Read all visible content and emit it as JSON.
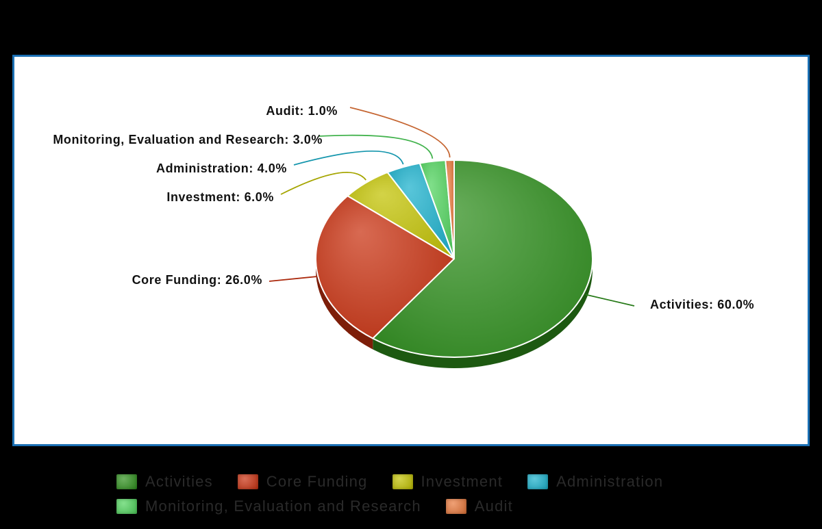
{
  "chart_data": {
    "type": "pie",
    "style": "3d",
    "slices": [
      {
        "name": "Activities",
        "value": 60.0,
        "label": "Activities: 60.0%",
        "color": "#2e8f1c"
      },
      {
        "name": "Core Funding",
        "value": 26.0,
        "label": "Core Funding: 26.0%",
        "color": "#c9300f"
      },
      {
        "name": "Investment",
        "value": 6.0,
        "label": "Investment: 6.0%",
        "color": "#c2c200"
      },
      {
        "name": "Administration",
        "value": 4.0,
        "label": "Administration: 4.0%",
        "color": "#19b0cc"
      },
      {
        "name": "Monitoring, Evaluation and Research",
        "value": 3.0,
        "label": "Monitoring, Evaluation and Research: 3.0%",
        "color": "#4fd35c"
      },
      {
        "name": "Audit",
        "value": 1.0,
        "label": "Audit: 1.0%",
        "color": "#e8773a"
      }
    ],
    "legend": {
      "placement": "bottom",
      "rows": [
        [
          "Activities",
          "Core Funding",
          "Investment",
          "Administration"
        ],
        [
          "Monitoring, Evaluation and Research",
          "Audit"
        ]
      ]
    }
  },
  "colors": {
    "background": "#000000",
    "plot_background": "#ffffff",
    "frame_border": "#1a6fb3"
  }
}
